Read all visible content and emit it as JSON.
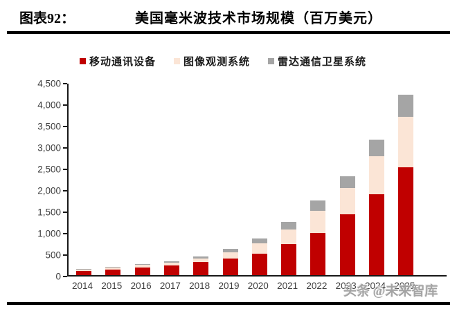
{
  "figure": {
    "label": "图表92：",
    "title": "美国毫米波技术市场规模（百万美元）",
    "watermark": "头条 @未来智库"
  },
  "colors": {
    "mobile": "#C00000",
    "imaging": "#FBE5D6",
    "radar": "#A5A5A5",
    "axis": "#161616"
  },
  "chart_data": {
    "type": "bar",
    "stacked": true,
    "title": "美国毫米波技术市场规模（百万美元）",
    "categories": [
      "2014",
      "2015",
      "2016",
      "2017",
      "2018",
      "2019",
      "2020",
      "2021",
      "2022",
      "2023",
      "2024",
      "2025"
    ],
    "series": [
      {
        "name": "移动通讯设备",
        "color": "#C00000",
        "values": [
          100,
          135,
          185,
          230,
          300,
          390,
          500,
          730,
          985,
          1420,
          1895,
          2515
        ]
      },
      {
        "name": "图像观测系统",
        "color": "#FBE5D6",
        "values": [
          25,
          35,
          50,
          55,
          90,
          150,
          245,
          340,
          515,
          620,
          875,
          1180
        ]
      },
      {
        "name": "雷达通信卫星系统",
        "color": "#A5A5A5",
        "values": [
          15,
          20,
          25,
          40,
          40,
          70,
          115,
          170,
          235,
          265,
          390,
          520
        ]
      }
    ],
    "totals": [
      140,
      190,
      260,
      325,
      430,
      610,
      860,
      1240,
      1735,
      2305,
      3160,
      4215
    ],
    "xlabel": "",
    "ylabel": "",
    "ylim": [
      0,
      4500
    ],
    "ytick_step": 500,
    "ytick_labels": [
      "0",
      "500",
      "1,000",
      "1,500",
      "2,000",
      "2,500",
      "3,000",
      "3,500",
      "4,000",
      "4,500"
    ],
    "grid": false,
    "legend_position": "top"
  }
}
